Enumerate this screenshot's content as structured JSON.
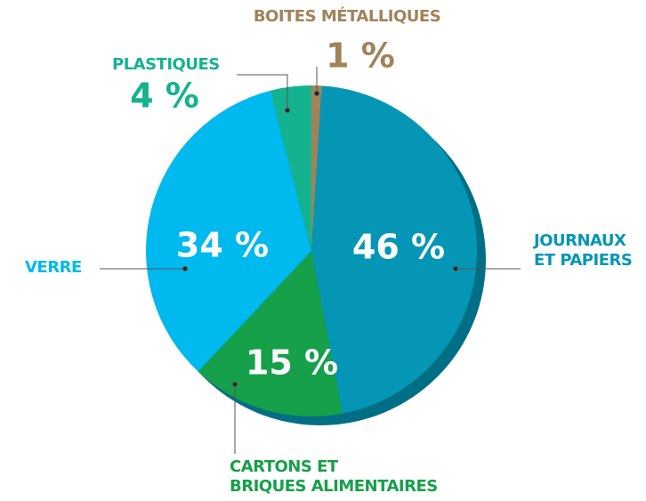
{
  "chart_data": {
    "type": "pie",
    "categories": [
      "BOITES MÉTALLIQUES",
      "JOURNAUX\nET PAPIERS",
      "CARTONS ET\nBRIQUES ALIMENTAIRES",
      "VERRE",
      "PLASTIQUES"
    ],
    "values": [
      1,
      46,
      15,
      34,
      4
    ],
    "value_labels": [
      "1 %",
      "46 %",
      "15 %",
      "34 %",
      "4 %"
    ],
    "colors": [
      "#a08358",
      "#0596b5",
      "#16a04a",
      "#00b9ee",
      "#15b28f"
    ]
  }
}
